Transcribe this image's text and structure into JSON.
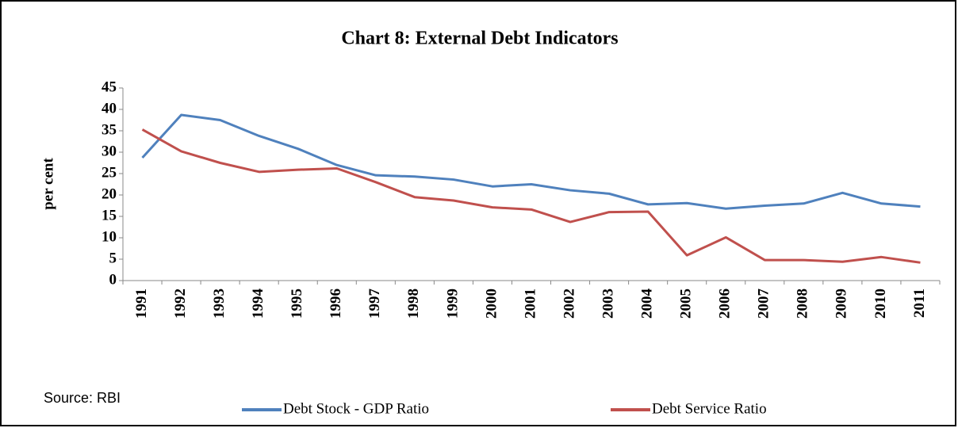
{
  "chart_data": {
    "type": "line",
    "title": "Chart 8: External Debt Indicators",
    "y_label": "per cent",
    "source": "Source: RBI",
    "categories": [
      "1991",
      "1992",
      "1993",
      "1994",
      "1995",
      "1996",
      "1997",
      "1998",
      "1999",
      "2000",
      "2001",
      "2002",
      "2003",
      "2004",
      "2005",
      "2006",
      "2007",
      "2008",
      "2009",
      "2010",
      "2011"
    ],
    "series": [
      {
        "name": "Debt Stock - GDP Ratio",
        "color": "#4f81bd",
        "values": [
          28.7,
          38.7,
          37.5,
          33.8,
          30.8,
          27.0,
          24.6,
          24.3,
          23.6,
          22.0,
          22.5,
          21.1,
          20.3,
          17.8,
          18.1,
          16.8,
          17.5,
          18.0,
          20.5,
          18.0,
          17.3
        ]
      },
      {
        "name": "Debt Service Ratio",
        "color": "#c0504d",
        "values": [
          35.3,
          30.2,
          27.5,
          25.4,
          25.9,
          26.2,
          23.0,
          19.5,
          18.7,
          17.1,
          16.6,
          13.7,
          16.0,
          16.1,
          5.9,
          10.1,
          4.8,
          4.8,
          4.4,
          5.5,
          4.2
        ]
      }
    ],
    "ylim": [
      0,
      45
    ],
    "yticks": [
      0,
      5,
      10,
      15,
      20,
      25,
      30,
      35,
      40,
      45
    ]
  }
}
